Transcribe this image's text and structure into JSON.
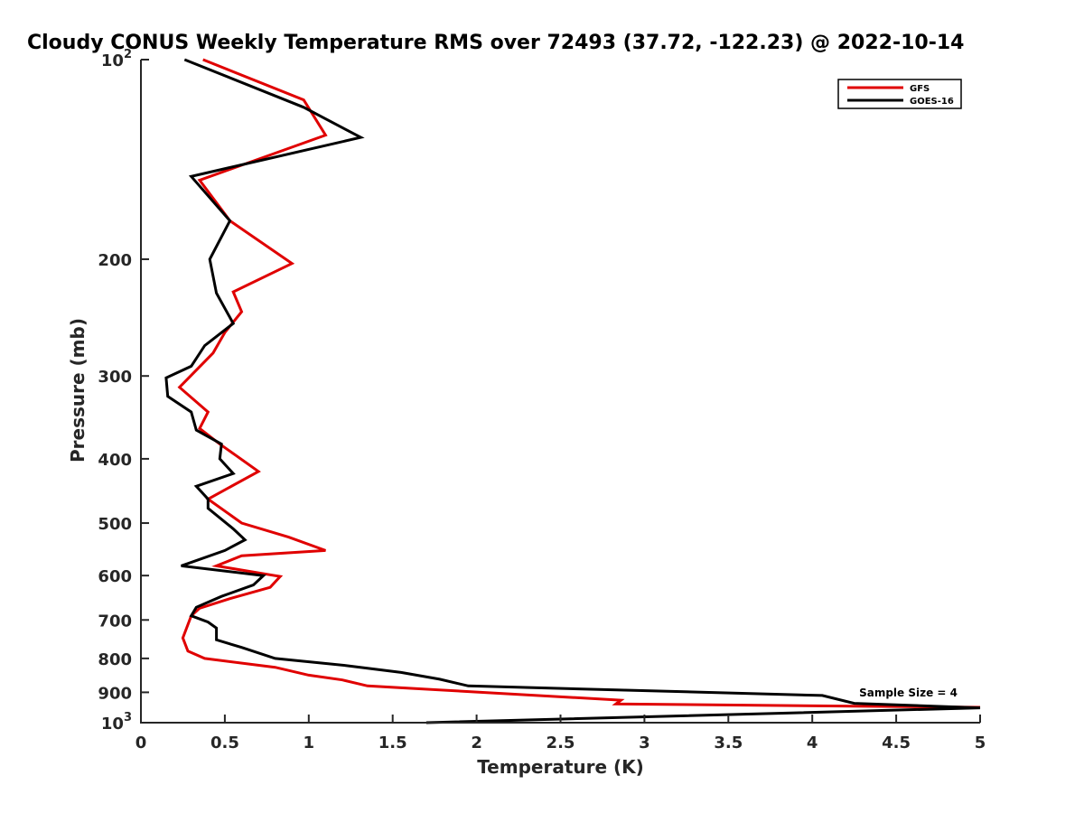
{
  "chart_data": {
    "type": "line",
    "title": "Cloudy CONUS Weekly Temperature RMS over 72493 (37.72, -122.23) @ 2022-10-14",
    "xlabel": "Temperature (K)",
    "ylabel": "Pressure (mb)",
    "xlim": [
      0,
      5
    ],
    "ylim": [
      100,
      1000
    ],
    "y_scale": "log",
    "y_reversed": true,
    "grid": false,
    "legend_position": "top-right",
    "x_ticks": [
      "0",
      "0.5",
      "1",
      "1.5",
      "2",
      "2.5",
      "3",
      "3.5",
      "4",
      "4.5",
      "5"
    ],
    "y_ticks": [
      {
        "value": 100,
        "base": "10",
        "exp": "2"
      },
      {
        "value": 200,
        "label": "200"
      },
      {
        "value": 300,
        "label": "300"
      },
      {
        "value": 400,
        "label": "400"
      },
      {
        "value": 500,
        "label": "500"
      },
      {
        "value": 600,
        "label": "600"
      },
      {
        "value": 700,
        "label": "700"
      },
      {
        "value": 800,
        "label": "800"
      },
      {
        "value": 900,
        "label": "900"
      },
      {
        "value": 1000,
        "base": "10",
        "exp": "3"
      }
    ],
    "annotation": "Sample Size = 4",
    "series": [
      {
        "name": "GFS",
        "color": "#e00000",
        "points": [
          [
            0.37,
            100
          ],
          [
            0.97,
            115
          ],
          [
            1.1,
            130
          ],
          [
            0.35,
            152
          ],
          [
            0.53,
            175
          ],
          [
            0.9,
            203
          ],
          [
            0.55,
            224
          ],
          [
            0.6,
            240
          ],
          [
            0.5,
            258
          ],
          [
            0.43,
            277
          ],
          [
            0.23,
            312
          ],
          [
            0.4,
            340
          ],
          [
            0.35,
            360
          ],
          [
            0.47,
            380
          ],
          [
            0.57,
            396
          ],
          [
            0.7,
            418
          ],
          [
            0.4,
            460
          ],
          [
            0.6,
            500
          ],
          [
            0.88,
            525
          ],
          [
            1.1,
            550
          ],
          [
            0.6,
            560
          ],
          [
            0.45,
            580
          ],
          [
            0.83,
            602
          ],
          [
            0.77,
            625
          ],
          [
            0.53,
            650
          ],
          [
            0.35,
            672
          ],
          [
            0.3,
            690
          ],
          [
            0.25,
            745
          ],
          [
            0.28,
            780
          ],
          [
            0.38,
            800
          ],
          [
            0.8,
            825
          ],
          [
            1.0,
            848
          ],
          [
            1.2,
            862
          ],
          [
            1.35,
            880
          ],
          [
            2.86,
            925
          ],
          [
            2.83,
            937
          ],
          [
            5.0,
            948
          ]
        ]
      },
      {
        "name": "GOES-16",
        "color": "#000000",
        "points": [
          [
            0.26,
            100
          ],
          [
            0.97,
            118
          ],
          [
            1.31,
            131
          ],
          [
            0.3,
            150
          ],
          [
            0.53,
            175
          ],
          [
            0.41,
            200
          ],
          [
            0.45,
            225
          ],
          [
            0.55,
            250
          ],
          [
            0.38,
            270
          ],
          [
            0.3,
            290
          ],
          [
            0.15,
            302
          ],
          [
            0.16,
            322
          ],
          [
            0.3,
            340
          ],
          [
            0.33,
            362
          ],
          [
            0.48,
            380
          ],
          [
            0.47,
            400
          ],
          [
            0.55,
            421
          ],
          [
            0.33,
            440
          ],
          [
            0.4,
            460
          ],
          [
            0.4,
            475
          ],
          [
            0.55,
            510
          ],
          [
            0.62,
            530
          ],
          [
            0.5,
            550
          ],
          [
            0.24,
            580
          ],
          [
            0.73,
            600
          ],
          [
            0.67,
            620
          ],
          [
            0.48,
            645
          ],
          [
            0.33,
            670
          ],
          [
            0.3,
            690
          ],
          [
            0.4,
            705
          ],
          [
            0.45,
            720
          ],
          [
            0.45,
            750
          ],
          [
            0.6,
            770
          ],
          [
            0.8,
            800
          ],
          [
            1.22,
            820
          ],
          [
            1.55,
            840
          ],
          [
            1.78,
            860
          ],
          [
            1.95,
            880
          ],
          [
            4.06,
            910
          ],
          [
            4.25,
            935
          ],
          [
            5.0,
            950
          ],
          [
            1.7,
            1000
          ]
        ]
      }
    ]
  }
}
